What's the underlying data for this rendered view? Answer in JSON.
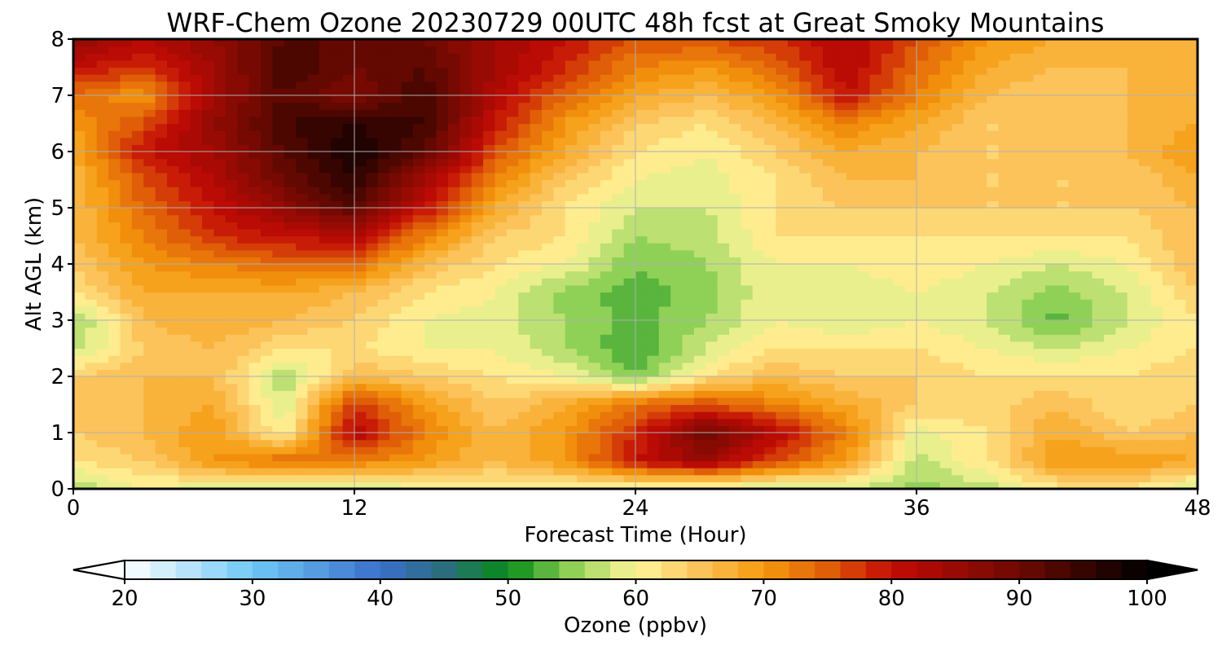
{
  "chart_data": {
    "type": "heatmap",
    "title": "WRF-Chem Ozone  20230729 00UTC 48h fcst at Great Smoky Mountains",
    "xlabel": "Forecast Time (Hour)",
    "ylabel": "Alt AGL (km)",
    "xlim": [
      0,
      48
    ],
    "ylim": [
      0,
      8
    ],
    "xticks": [
      0,
      12,
      24,
      36,
      48
    ],
    "yticks": [
      0,
      1,
      2,
      3,
      4,
      5,
      6,
      7,
      8
    ],
    "grid": true,
    "x": [
      0,
      3,
      6,
      9,
      12,
      15,
      18,
      21,
      24,
      27,
      30,
      33,
      36,
      39,
      42,
      45,
      48
    ],
    "y": [
      0,
      0.5,
      1,
      1.5,
      2,
      2.5,
      3,
      3.5,
      4,
      4.5,
      5,
      5.5,
      6,
      6.5,
      7,
      7.5,
      8
    ],
    "z": [
      [
        56,
        60,
        58,
        58,
        57,
        59,
        60,
        60,
        58,
        57,
        57,
        58,
        55,
        57,
        61,
        62,
        57
      ],
      [
        62,
        64,
        70,
        74,
        72,
        70,
        66,
        70,
        80,
        85,
        76,
        70,
        57,
        62,
        70,
        70,
        68
      ],
      [
        64,
        66,
        70,
        60,
        82,
        72,
        66,
        70,
        78,
        90,
        82,
        72,
        59,
        62,
        68,
        64,
        66
      ],
      [
        64,
        66,
        68,
        58,
        78,
        70,
        64,
        68,
        74,
        76,
        72,
        68,
        64,
        63,
        66,
        62,
        64
      ],
      [
        64,
        66,
        66,
        56,
        66,
        64,
        62,
        60,
        54,
        62,
        66,
        64,
        64,
        62,
        62,
        62,
        64
      ],
      [
        57,
        64,
        66,
        62,
        62,
        60,
        60,
        56,
        52,
        58,
        62,
        62,
        62,
        60,
        58,
        60,
        62
      ],
      [
        55,
        66,
        68,
        66,
        64,
        60,
        59,
        56,
        53,
        56,
        60,
        58,
        60,
        58,
        53,
        58,
        62
      ],
      [
        62,
        68,
        68,
        68,
        66,
        62,
        60,
        55,
        53,
        55,
        60,
        58,
        60,
        58,
        55,
        58,
        64
      ],
      [
        64,
        70,
        72,
        74,
        74,
        66,
        62,
        60,
        54,
        56,
        60,
        60,
        62,
        60,
        58,
        60,
        66
      ],
      [
        66,
        72,
        78,
        80,
        82,
        72,
        64,
        62,
        56,
        57,
        62,
        62,
        62,
        62,
        62,
        62,
        66
      ],
      [
        66,
        74,
        80,
        86,
        92,
        80,
        68,
        62,
        58,
        58,
        62,
        64,
        64,
        64,
        64,
        64,
        66
      ],
      [
        66,
        76,
        82,
        90,
        96,
        84,
        72,
        64,
        60,
        59,
        62,
        66,
        66,
        64,
        64,
        64,
        68
      ],
      [
        68,
        80,
        84,
        92,
        98,
        92,
        76,
        68,
        62,
        60,
        64,
        68,
        66,
        64,
        64,
        66,
        70
      ],
      [
        70,
        76,
        86,
        94,
        96,
        94,
        80,
        70,
        64,
        62,
        66,
        72,
        68,
        64,
        64,
        66,
        68
      ],
      [
        74,
        70,
        84,
        92,
        88,
        94,
        82,
        74,
        68,
        66,
        70,
        80,
        72,
        66,
        64,
        66,
        66
      ],
      [
        80,
        78,
        84,
        94,
        90,
        92,
        84,
        78,
        72,
        70,
        74,
        82,
        74,
        68,
        66,
        66,
        66
      ],
      [
        86,
        82,
        86,
        92,
        92,
        90,
        84,
        80,
        76,
        76,
        78,
        82,
        76,
        70,
        68,
        68,
        68
      ]
    ],
    "colorbar": {
      "label": "Ozone  (ppbv)",
      "min": 20,
      "max": 100,
      "ticks": [
        20,
        30,
        40,
        50,
        60,
        70,
        80,
        90,
        100
      ],
      "extend": "both",
      "orientation": "horizontal",
      "colormap": [
        [
          20,
          "#ffffff"
        ],
        [
          30,
          "#6ec8f6"
        ],
        [
          40,
          "#3b6fcc"
        ],
        [
          45,
          "#2a6e7e"
        ],
        [
          50,
          "#078b16"
        ],
        [
          55,
          "#8fd157"
        ],
        [
          60,
          "#fff69b"
        ],
        [
          65,
          "#fbc35a"
        ],
        [
          70,
          "#f59a0c"
        ],
        [
          75,
          "#e05e08"
        ],
        [
          80,
          "#c20b05"
        ],
        [
          90,
          "#6e0a02"
        ],
        [
          100,
          "#000000"
        ]
      ],
      "over_color": "#000000",
      "under_color": "#ffffff"
    }
  }
}
